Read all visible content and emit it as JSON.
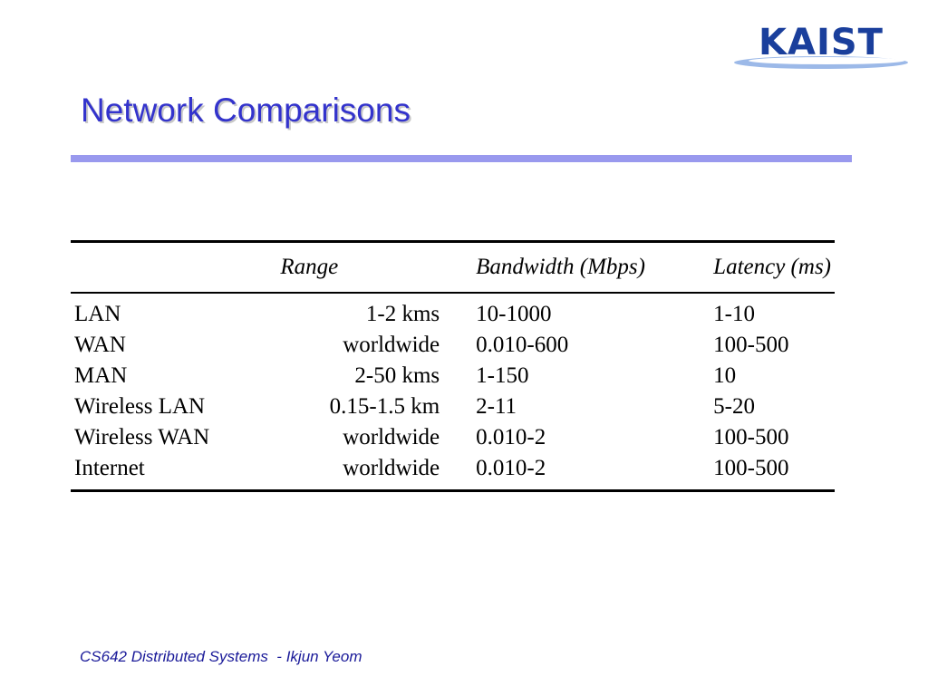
{
  "logo": {
    "text": "KAIST",
    "color": "#1a3f9c",
    "swoosh_color": "#4a7fd6"
  },
  "title": "Network Comparisons",
  "title_color": "#3333cc",
  "rule_color": "#9999ee",
  "table": {
    "headers": [
      "",
      "Range",
      "Bandwidth (Mbps)",
      "Latency (ms)"
    ],
    "rows": [
      [
        "LAN",
        "1-2 kms",
        "10-1000",
        "1-10"
      ],
      [
        "WAN",
        "worldwide",
        "0.010-600",
        "100-500"
      ],
      [
        "MAN",
        "2-50 kms",
        "1-150",
        "10"
      ],
      [
        "Wireless LAN",
        "0.15-1.5 km",
        "2-11",
        "5-20"
      ],
      [
        "Wireless WAN",
        "worldwide",
        "0.010-2",
        "100-500"
      ],
      [
        "Internet",
        "worldwide",
        "0.010-2",
        "100-500"
      ]
    ]
  },
  "footer": "CS642 Distributed Systems  - Ikjun Yeom"
}
